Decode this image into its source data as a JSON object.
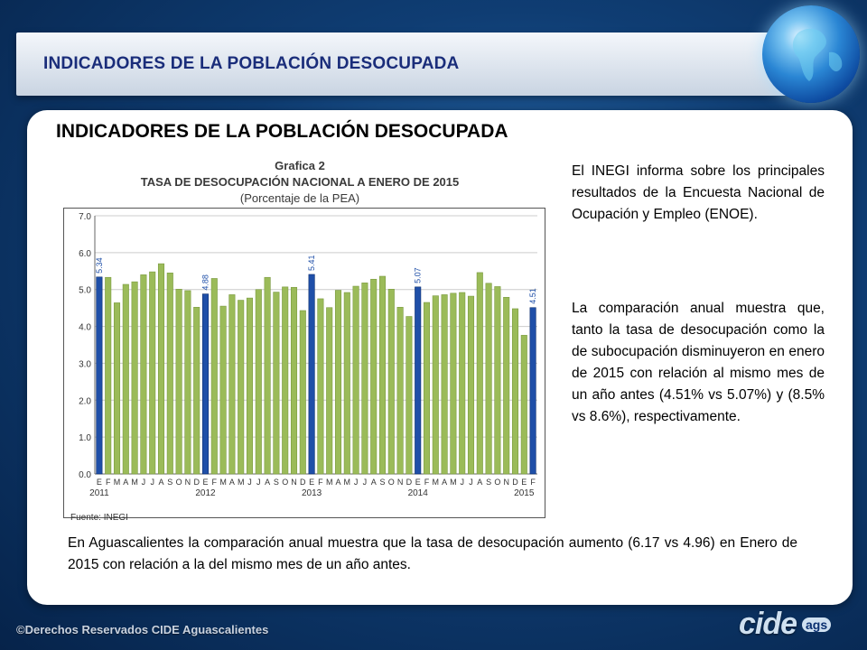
{
  "header": {
    "title": "INDICADORES DE LA POBLACIÓN DESOCUPADA"
  },
  "card": {
    "title": "INDICADORES DE LA POBLACIÓN DESOCUPADA",
    "paragraph1": "El INEGI informa sobre los principales resultados de la Encuesta Nacional de Ocupación y Empleo (ENOE).",
    "paragraph2": "La comparación anual muestra que, tanto la tasa de desocupación como la de subocupación disminuyeron en enero de 2015 con relación al mismo mes de un año antes (4.51% vs 5.07%) y (8.5% vs 8.6%), respectivamente.",
    "bottom_paragraph": "En Aguascalientes la comparación anual muestra que la tasa de desocupación aumento (6.17 vs 4.96) en Enero de 2015 con relación a la del mismo mes de un año antes."
  },
  "chart_caption": {
    "line1": "Grafica 2",
    "line2": "TASA DE DESOCUPACIÓN NACIONAL A ENERO DE 2015",
    "line3": "(Porcentaje de la PEA)",
    "source": "Fuente: INEGI"
  },
  "footer": {
    "copyright": "©Derechos Reservados CIDE Aguascalientes"
  },
  "logo": {
    "text": "cide",
    "sub": "ags"
  },
  "chart_data": {
    "type": "bar",
    "title": "TASA DE DESOCUPACIÓN NACIONAL A ENERO DE 2015",
    "subtitle": "(Porcentaje de la PEA)",
    "ylim": [
      0,
      7
    ],
    "yticks": [
      "0.0",
      "1.0",
      "2.0",
      "3.0",
      "4.0",
      "5.0",
      "6.0",
      "7.0"
    ],
    "grid": true,
    "month_labels": [
      "E",
      "F",
      "M",
      "A",
      "M",
      "J",
      "J",
      "A",
      "S",
      "O",
      "N",
      "D"
    ],
    "year_labels": [
      "2011",
      "2012",
      "2013",
      "2014",
      "2015"
    ],
    "values": [
      5.34,
      5.33,
      4.64,
      5.14,
      5.21,
      5.4,
      5.48,
      5.7,
      5.45,
      5.01,
      4.97,
      4.52,
      4.88,
      5.3,
      4.55,
      4.86,
      4.71,
      4.77,
      5.0,
      5.33,
      4.93,
      5.07,
      5.06,
      4.43,
      5.41,
      4.75,
      4.51,
      4.98,
      4.92,
      5.09,
      5.18,
      5.28,
      5.36,
      5.01,
      4.52,
      4.27,
      5.07,
      4.65,
      4.83,
      4.86,
      4.9,
      4.92,
      4.82,
      5.46,
      5.17,
      5.08,
      4.79,
      4.48,
      3.76,
      4.51
    ],
    "highlighted": [
      {
        "index": 0,
        "label": "5.34"
      },
      {
        "index": 12,
        "label": "4.88"
      },
      {
        "index": 24,
        "label": "5.41"
      },
      {
        "index": 36,
        "label": "5.07"
      },
      {
        "index": 49,
        "label": "4.51"
      }
    ],
    "colors": {
      "regular": "#9bbb59",
      "highlight": "#1f4fa8"
    }
  }
}
